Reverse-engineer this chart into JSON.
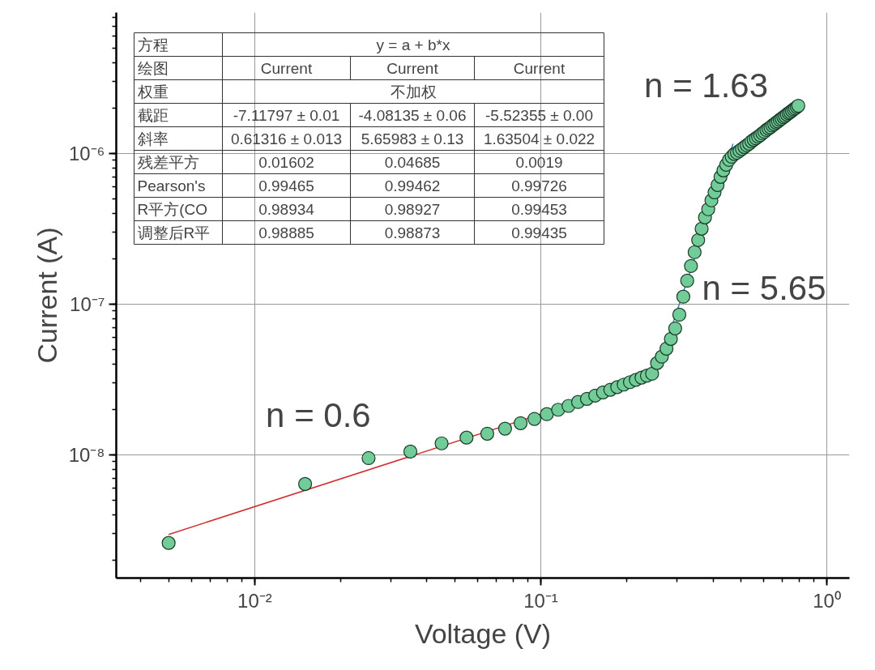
{
  "chart_data": {
    "type": "scatter",
    "xlabel": "Voltage (V)",
    "ylabel": "Current (A)",
    "log": "xy",
    "grid": true,
    "xlim": [
      0.00328,
      1.2
    ],
    "ylim": [
      1.52e-09,
      8.6e-06
    ],
    "xticks": [
      {
        "value": 0.01,
        "label": "10⁻²"
      },
      {
        "value": 0.1,
        "label": "10⁻¹"
      },
      {
        "value": 1,
        "label": "10⁰"
      }
    ],
    "yticks": [
      {
        "value": 1e-08,
        "label": "10⁻⁸"
      },
      {
        "value": 1e-07,
        "label": "10⁻⁷"
      },
      {
        "value": 1e-06,
        "label": "10⁻⁶"
      }
    ],
    "series": [
      {
        "marker": "circle",
        "color": "#72cc98",
        "x": [
          0.005,
          0.015,
          0.025,
          0.035,
          0.045,
          0.055,
          0.065,
          0.075,
          0.085,
          0.095,
          0.105,
          0.115,
          0.125,
          0.135,
          0.145,
          0.155,
          0.165,
          0.175,
          0.185,
          0.195,
          0.205,
          0.215,
          0.225,
          0.235,
          0.245,
          0.255,
          0.265,
          0.275,
          0.285,
          0.295,
          0.305,
          0.315,
          0.325,
          0.335,
          0.345,
          0.355,
          0.365,
          0.375,
          0.385,
          0.395,
          0.405,
          0.415,
          0.425,
          0.435,
          0.445,
          0.455,
          0.465,
          0.475,
          0.485,
          0.495,
          0.505,
          0.515,
          0.525,
          0.535,
          0.545,
          0.555,
          0.565,
          0.575,
          0.585,
          0.595,
          0.605,
          0.615,
          0.625,
          0.635,
          0.645,
          0.655,
          0.665,
          0.675,
          0.685,
          0.695,
          0.705,
          0.715,
          0.725,
          0.735,
          0.745,
          0.755,
          0.765,
          0.775,
          0.785,
          0.795
        ],
        "values": [
          2.6e-09,
          6.4e-09,
          9.5e-09,
          1.05e-08,
          1.19e-08,
          1.3e-08,
          1.38e-08,
          1.49e-08,
          1.62e-08,
          1.73e-08,
          1.86e-08,
          1.99e-08,
          2.11e-08,
          2.24e-08,
          2.35e-08,
          2.47e-08,
          2.59e-08,
          2.7e-08,
          2.81e-08,
          2.92e-08,
          3.03e-08,
          3.14e-08,
          3.25e-08,
          3.35e-08,
          3.45e-08,
          4.06e-08,
          4.48e-08,
          5.06e-08,
          5.87e-08,
          6.9e-08,
          8.5e-08,
          1.12e-07,
          1.43e-07,
          1.79e-07,
          2.21e-07,
          2.66e-07,
          3.16e-07,
          3.76e-07,
          4.26e-07,
          4.88e-07,
          5.52e-07,
          6.17e-07,
          6.98e-07,
          7.71e-07,
          8.41e-07,
          9.06e-07,
          9.5e-07,
          9.9e-07,
          1.01e-06,
          1.04e-06,
          1.07e-06,
          1.1e-06,
          1.13e-06,
          1.16e-06,
          1.2e-06,
          1.23e-06,
          1.26e-06,
          1.29e-06,
          1.32e-06,
          1.36e-06,
          1.39e-06,
          1.43e-06,
          1.46e-06,
          1.49e-06,
          1.53e-06,
          1.56e-06,
          1.6e-06,
          1.63e-06,
          1.67e-06,
          1.7e-06,
          1.74e-06,
          1.77e-06,
          1.81e-06,
          1.85e-06,
          1.88e-06,
          1.92e-06,
          1.96e-06,
          1.99e-06,
          2.03e-06,
          2.07e-06
        ]
      },
      {
        "type": "line",
        "color": "#d03030",
        "x": [
          0.005,
          0.245
        ],
        "values": [
          2.96e-09,
          3.22e-08
        ]
      },
      {
        "type": "line",
        "color": "#3a80c0",
        "x": [
          0.25,
          0.47
        ],
        "values": [
          3.24e-08,
          1.156e-06
        ]
      }
    ],
    "annotations": [
      "n = 0.6",
      "n = 5.65",
      "n = 1.63",
      "方程",
      "y = a + b*x",
      "绘图",
      "Current",
      "Current",
      "Current",
      "权重",
      "不加权",
      "截距",
      "-7.11797 ± 0.01",
      "-4.08135 ± 0.06",
      "-5.52355 ± 0.00",
      "斜率",
      "0.61316 ± 0.013",
      "5.65983 ± 0.13",
      "1.63504 ± 0.022",
      "残差平方",
      "0.01602",
      "0.04685",
      "0.0019",
      "Pearson's",
      "0.99465",
      "0.99462",
      "0.99726",
      "R平方(CO",
      "0.98934",
      "0.98927",
      "0.99453",
      "调整后R平",
      "0.98885",
      "0.98873",
      "0.99435"
    ]
  }
}
